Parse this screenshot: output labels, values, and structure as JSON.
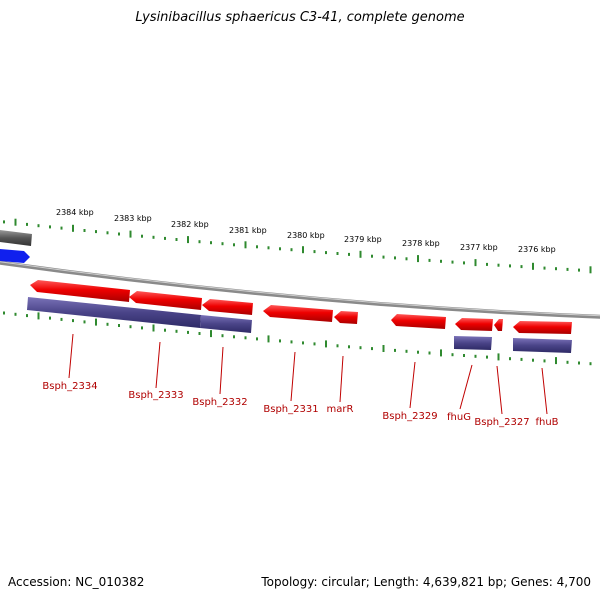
{
  "title": "Lysinibacillus sphaericus C3-41, complete genome",
  "accession_text": "Accession: NC_010382",
  "summary_text": "Topology: circular; Length: 4,639,821 bp; Genes: 4,700",
  "colors": {
    "backbone": "#7a7a7a",
    "cds_forward": "#ee0000",
    "cds_reverse_band": "#4a4488",
    "label": "#b00000",
    "tick": "#2f8a2f",
    "blue_feature": "#1020ee",
    "gray_feature": "#555555"
  },
  "ruler_labels": [
    "2384 kbp",
    "2383 kbp",
    "2382 kbp",
    "2381 kbp",
    "2380 kbp",
    "2379 kbp",
    "2378 kbp",
    "2377 kbp",
    "2376 kbp"
  ],
  "gene_labels": [
    "Bsph_2334",
    "Bsph_2333",
    "Bsph_2332",
    "Bsph_2331",
    "marR",
    "Bsph_2329",
    "fhuG",
    "Bsph_2327",
    "fhuB"
  ]
}
